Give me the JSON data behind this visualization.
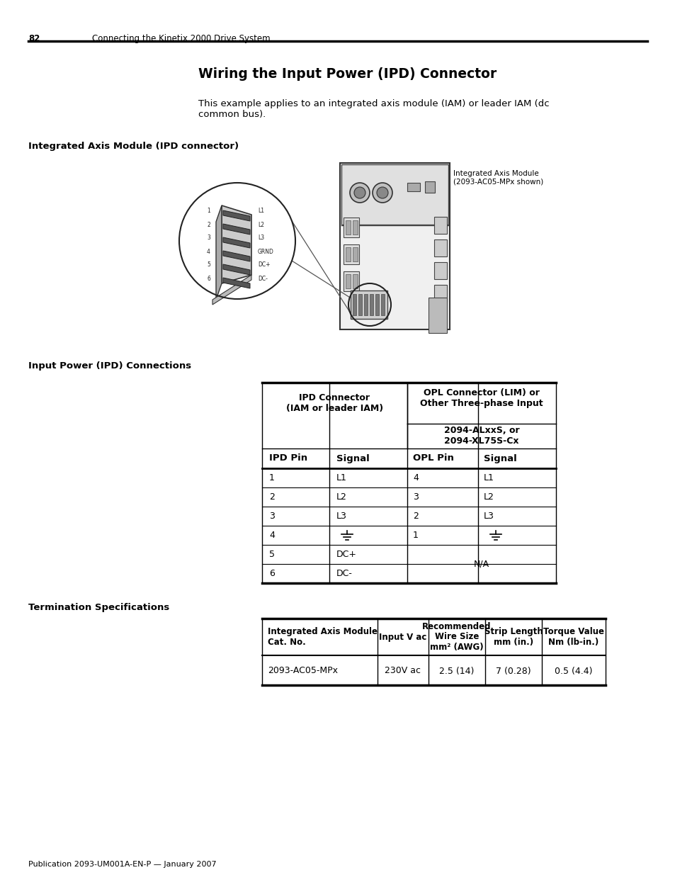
{
  "page_number": "82",
  "header_text": "Connecting the Kinetix 2000 Drive System",
  "title": "Wiring the Input Power (IPD) Connector",
  "intro_text": "This example applies to an integrated axis module (IAM) or leader IAM (dc\ncommon bus).",
  "section1_title": "Integrated Axis Module (IPD connector)",
  "diagram_label": "Integrated Axis Module\n(2093-AC05-MPx shown)",
  "connector_labels": [
    "L1",
    "L2",
    "L3",
    "GRND",
    "DC+",
    "DC-"
  ],
  "connector_numbers": [
    "1",
    "2",
    "3",
    "4",
    "5",
    "6"
  ],
  "section2_title": "Input Power (IPD) Connections",
  "ipd_table_header1": "IPD Connector\n(IAM or leader IAM)",
  "ipd_table_header2_line1": "OPL Connector (LIM) or",
  "ipd_table_header2_line2": "Other Three-phase Input",
  "ipd_table_header2b": "2094-ALxxS, or\n2094-XL75S-Cx",
  "col_headers": [
    "IPD Pin",
    "Signal",
    "OPL Pin",
    "Signal"
  ],
  "table_rows": [
    [
      "1",
      "L1",
      "4",
      "L1"
    ],
    [
      "2",
      "L2",
      "3",
      "L2"
    ],
    [
      "3",
      "L3",
      "2",
      "L3"
    ],
    [
      "4",
      "⊥",
      "1",
      "⊥"
    ],
    [
      "5",
      "DC+",
      "",
      ""
    ],
    [
      "6",
      "DC-",
      "",
      "N/A"
    ]
  ],
  "section3_title": "Termination Specifications",
  "term_col_headers": [
    "Integrated Axis Module\nCat. No.",
    "Input V ac",
    "Recommended\nWire Size\nmm² (AWG)",
    "Strip Length\nmm (in.)",
    "Torque Value\nNm (lb-in.)"
  ],
  "term_rows": [
    [
      "2093-AC05-MPx",
      "230V ac",
      "2.5 (14)",
      "7 (0.28)",
      "0.5 (4.4)"
    ]
  ],
  "footer_text": "Publication 2093-UM001A-EN-P — January 2007",
  "bg_color": "#ffffff",
  "text_color": "#000000"
}
